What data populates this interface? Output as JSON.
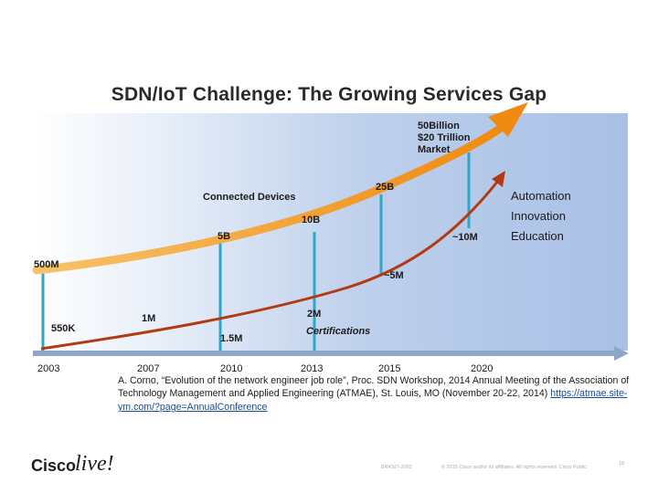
{
  "title": "SDN/IoT Challenge: The Growing Services Gap",
  "diagram": {
    "market_label": "50Billion\n$20 Trillion\nMarket",
    "devices_values": [
      "500M",
      "5B",
      "10B",
      "25B"
    ],
    "devices_label": "Connected Devices",
    "engineer_values": [
      "550K",
      "1M",
      "1.5M",
      "2M",
      "~5M",
      "~10M"
    ],
    "certifications_label": "Certifications",
    "side_labels": [
      "Automation",
      "Innovation",
      "Education"
    ],
    "years": [
      "2003",
      "2007",
      "2010",
      "2013",
      "2015",
      "2020"
    ],
    "colors": {
      "devices_arrow": "#f29a1e",
      "engineer_arrow": "#b33a12",
      "markers": "#2fa7c9"
    }
  },
  "reference": {
    "text": "A. Corno, “Evolution of the network engineer job role”, Proc. SDN Workshop, 2014 Annual Meeting of the Association of Technology Management and Applied Engineering (ATMAE), St. Louis, MO (November 20-22, 2014)",
    "link": "https://atmae.site-ym.com/?page=AnnualConference"
  },
  "footer": {
    "brand_prefix": "Cisco",
    "brand_suffix": "live!",
    "session": "BRKSIT-2002",
    "copyright": "© 2015 Cisco and/or its affiliates. All rights reserved.   Cisco Public",
    "page": "18"
  }
}
